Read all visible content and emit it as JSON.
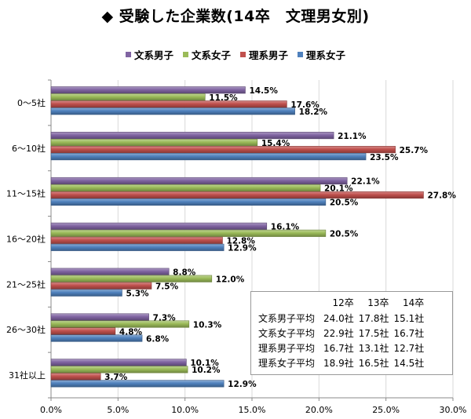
{
  "title": "◆ 受験した企業数(14卒　文理男女別)",
  "legend": [
    {
      "label": "文系男子",
      "color": "#8064A2"
    },
    {
      "label": "文系女子",
      "color": "#9BBB59"
    },
    {
      "label": "理系男子",
      "color": "#C0504D"
    },
    {
      "label": "理系女子",
      "color": "#4F81BD"
    }
  ],
  "chart_data": {
    "type": "bar",
    "orientation": "horizontal",
    "categories": [
      "0～5社",
      "6～10社",
      "11～15社",
      "16～20社",
      "21～25社",
      "26～30社",
      "31社以上"
    ],
    "series": [
      {
        "name": "文系男子",
        "color": "#8064A2",
        "values": [
          14.5,
          21.1,
          22.1,
          16.1,
          8.8,
          7.3,
          10.1
        ],
        "labels": [
          "14.5%",
          "21.1%",
          "22.1%",
          "16.1%",
          "8.8%",
          "7.3%",
          "10.1%"
        ]
      },
      {
        "name": "文系女子",
        "color": "#9BBB59",
        "values": [
          11.5,
          15.4,
          20.1,
          20.5,
          12.0,
          10.3,
          10.2
        ],
        "labels": [
          "11.5%",
          "15.4%",
          "20.1%",
          "20.5%",
          "12.0%",
          "10.3%",
          "10.2%"
        ]
      },
      {
        "name": "理系男子",
        "color": "#C0504D",
        "values": [
          17.6,
          25.7,
          27.8,
          12.8,
          7.5,
          4.8,
          3.7
        ],
        "labels": [
          "17.6%",
          "25.7%",
          "27.8%",
          "12.8%",
          "7.5%",
          "4.8%",
          "3.7%"
        ]
      },
      {
        "name": "理系女子",
        "color": "#4F81BD",
        "values": [
          18.2,
          23.5,
          20.5,
          12.9,
          5.3,
          6.8,
          12.9
        ],
        "labels": [
          "18.2%",
          "23.5%",
          "20.5%",
          "12.9%",
          "5.3%",
          "6.8%",
          "12.9%"
        ]
      }
    ],
    "xlim": [
      0,
      30
    ],
    "xticks": [
      "0.0%",
      "5.0%",
      "10.0%",
      "15.0%",
      "20.0%",
      "25.0%",
      "30.0%"
    ],
    "grid": true,
    "legend_position": "top"
  },
  "stats_table": {
    "headers": [
      "12卒",
      "13卒",
      "14卒"
    ],
    "rows": [
      {
        "label": "文系男子平均",
        "values": [
          "24.0社",
          "17.8社",
          "15.1社"
        ]
      },
      {
        "label": "文系女子平均",
        "values": [
          "22.9社",
          "17.5社",
          "16.7社"
        ]
      },
      {
        "label": "理系男子平均",
        "values": [
          "16.7社",
          "13.1社",
          "12.7社"
        ]
      },
      {
        "label": "理系女子平均",
        "values": [
          "18.9社",
          "16.5社",
          "14.5社"
        ]
      }
    ]
  }
}
